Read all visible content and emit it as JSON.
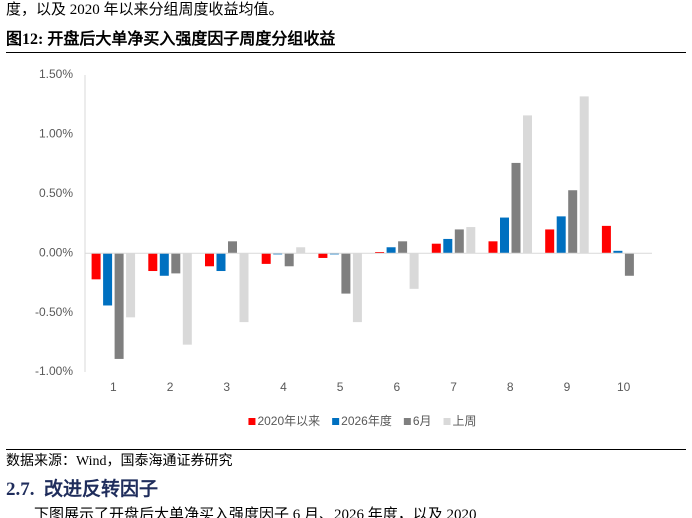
{
  "header": {
    "text": "度，以及 2020 年以来分组周度收益均值。"
  },
  "figure": {
    "caption": "图12:  开盘后大单净买入强度因子周度分组收益",
    "source": "数据来源：Wind，国泰海通证券研究"
  },
  "chart_data": {
    "type": "bar",
    "categories": [
      "1",
      "2",
      "3",
      "4",
      "5",
      "6",
      "7",
      "8",
      "9",
      "10"
    ],
    "series": [
      {
        "name": "2020年以来",
        "color": "#ff0000",
        "values": [
          -0.22,
          -0.15,
          -0.11,
          -0.09,
          -0.04,
          0.01,
          0.08,
          0.1,
          0.2,
          0.23
        ]
      },
      {
        "name": "2026年度",
        "color": "#0070c0",
        "values": [
          -0.44,
          -0.19,
          -0.15,
          -0.01,
          -0.01,
          0.05,
          0.12,
          0.3,
          0.31,
          0.02
        ]
      },
      {
        "name": "6月",
        "color": "#7f7f7f",
        "values": [
          -0.89,
          -0.17,
          0.1,
          -0.11,
          -0.34,
          0.1,
          0.2,
          0.76,
          0.53,
          -0.19
        ]
      },
      {
        "name": "上周",
        "color": "#d9d9d9",
        "values": [
          -0.54,
          -0.77,
          -0.58,
          0.05,
          -0.58,
          -0.3,
          0.22,
          1.16,
          1.32,
          0.0
        ]
      }
    ],
    "ylim": [
      -1.0,
      1.5
    ],
    "yticks": [
      {
        "value": -1.0,
        "label": "-1.00%"
      },
      {
        "value": -0.5,
        "label": "-0.50%"
      },
      {
        "value": 0,
        "label": "0.00%"
      },
      {
        "value": 0.5,
        "label": "0.50%"
      },
      {
        "value": 1.0,
        "label": "1.00%"
      },
      {
        "value": 1.5,
        "label": "1.50%"
      }
    ],
    "grid": false,
    "legend": "bottom"
  },
  "section": {
    "number": "2.7.",
    "title": "改进反转因子"
  },
  "body": {
    "text": "下图展示了开盘后大单净买入强度因子 6 月、2026 年度，以及 2020"
  }
}
